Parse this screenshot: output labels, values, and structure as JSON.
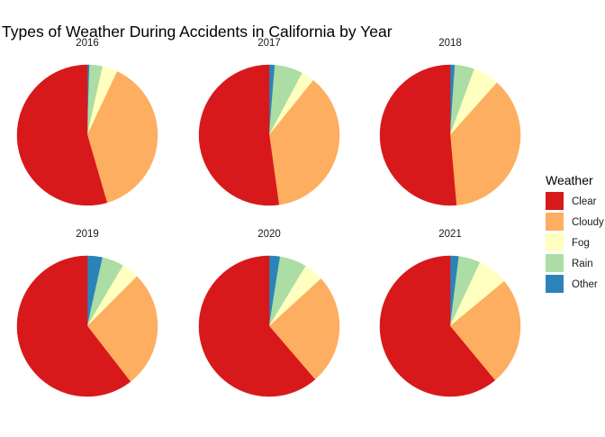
{
  "chart_data": {
    "type": "pie",
    "title": "Types of Weather During Accidents in California by Year",
    "legend": {
      "title": "Weather",
      "placement": "right",
      "entries": [
        "Clear",
        "Cloudy",
        "Fog",
        "Rain",
        "Other"
      ]
    },
    "colors": {
      "Clear": "#d7191c",
      "Cloudy": "#fdae61",
      "Fog": "#ffffbf",
      "Rain": "#abdda4",
      "Other": "#2b83ba"
    },
    "categories": [
      "Clear",
      "Cloudy",
      "Fog",
      "Rain",
      "Other"
    ],
    "facets": [
      {
        "label": "2016",
        "values": {
          "Clear": 0.545,
          "Cloudy": 0.385,
          "Fog": 0.035,
          "Rain": 0.03,
          "Other": 0.005
        }
      },
      {
        "label": "2017",
        "values": {
          "Clear": 0.522,
          "Cloudy": 0.37,
          "Fog": 0.03,
          "Rain": 0.065,
          "Other": 0.013
        }
      },
      {
        "label": "2018",
        "values": {
          "Clear": 0.514,
          "Cloudy": 0.37,
          "Fog": 0.06,
          "Rain": 0.045,
          "Other": 0.011
        }
      },
      {
        "label": "2019",
        "values": {
          "Clear": 0.605,
          "Cloudy": 0.27,
          "Fog": 0.04,
          "Rain": 0.05,
          "Other": 0.035
        }
      },
      {
        "label": "2020",
        "values": {
          "Clear": 0.613,
          "Cloudy": 0.255,
          "Fog": 0.045,
          "Rain": 0.062,
          "Other": 0.025
        }
      },
      {
        "label": "2021",
        "values": {
          "Clear": 0.61,
          "Cloudy": 0.25,
          "Fog": 0.07,
          "Rain": 0.05,
          "Other": 0.02
        }
      }
    ]
  }
}
